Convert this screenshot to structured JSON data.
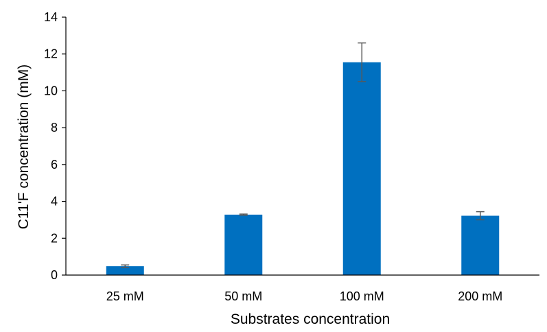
{
  "chart_data": {
    "type": "bar",
    "title": "",
    "xlabel": "Substrates concentration",
    "ylabel": "C11'F concentration (mM)",
    "categories": [
      "25 mM",
      "50 mM",
      "100 mM",
      "200 mM"
    ],
    "values": [
      0.48,
      3.28,
      11.55,
      3.22
    ],
    "errors": [
      0.07,
      0.03,
      1.05,
      0.22
    ],
    "ylim": [
      0,
      14
    ],
    "yticks": [
      "0",
      "2",
      "4",
      "6",
      "8",
      "10",
      "12",
      "14"
    ],
    "grid": false,
    "legend": "none",
    "bar_color": "#0070c0",
    "error_color": "#595959",
    "axis_color": "#000000"
  }
}
